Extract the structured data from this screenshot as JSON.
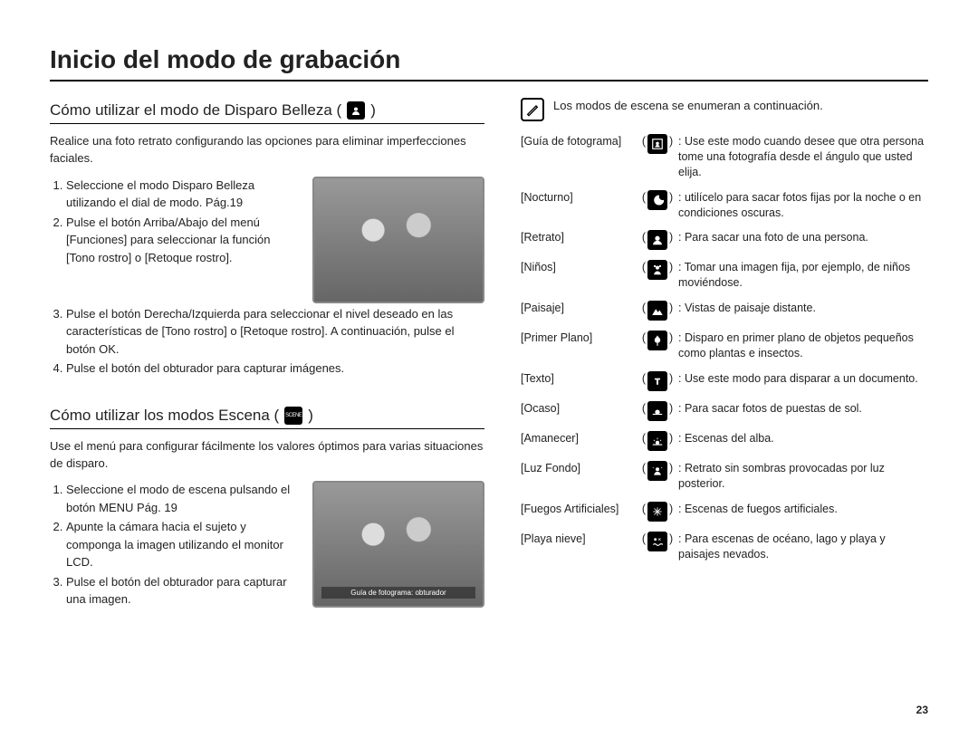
{
  "page": {
    "title": "Inicio del modo de grabación",
    "number": "23"
  },
  "section_beauty": {
    "heading": "Cómo utilizar el modo de Disparo Belleza (",
    "heading_close": ")",
    "icon_name": "beauty-shot-icon",
    "intro": "Realice una foto retrato configurando las opciones para eliminar imperfecciones faciales.",
    "steps": [
      "Seleccione el modo Disparo Belleza utilizando el dial de modo. Pág.19",
      "Pulse el botón Arriba/Abajo del menú [Funciones] para seleccionar la función [Tono rostro] o [Retoque rostro].",
      "Pulse el botón Derecha/Izquierda para seleccionar el nivel deseado en las características de [Tono rostro] o [Retoque rostro]. A continuación, pulse el botón OK.",
      "Pulse el botón del obturador para capturar imágenes."
    ]
  },
  "section_scene": {
    "heading": "Cómo utilizar los modos Escena (",
    "heading_close": ")",
    "icon_label": "SCENE",
    "intro": "Use el menú para configurar fácilmente los valores óptimos para varias situaciones de disparo.",
    "steps": [
      "Seleccione el modo de escena pulsando el botón MENU Pág. 19",
      "Apunte la cámara hacia el sujeto y componga la imagen utilizando el monitor LCD.",
      "Pulse el botón del obturador para capturar una imagen."
    ],
    "lcd_caption": "Guía de fotograma: obturador"
  },
  "scene_note": "Los modos de escena se enumeran a continuación.",
  "modes": [
    {
      "name": "[Guía de fotograma]",
      "icon": "frame-guide",
      "desc": "Use este modo cuando desee que otra persona tome una fotografía desde el ángulo que usted elija."
    },
    {
      "name": "[Nocturno]",
      "icon": "night",
      "desc": "utilícelo para sacar fotos fijas por la noche o en condiciones oscuras."
    },
    {
      "name": "[Retrato]",
      "icon": "portrait",
      "desc": "Para sacar una foto de una persona."
    },
    {
      "name": "[Niños]",
      "icon": "children",
      "desc": "Tomar una imagen fija, por ejemplo, de niños moviéndose."
    },
    {
      "name": "[Paisaje]",
      "icon": "landscape",
      "desc": "Vistas de paisaje distante."
    },
    {
      "name": "[Primer Plano]",
      "icon": "closeup",
      "desc": "Disparo en primer plano de objetos pequeños como plantas e insectos."
    },
    {
      "name": "[Texto]",
      "icon": "text",
      "desc": "Use este modo para disparar a un documento."
    },
    {
      "name": "[Ocaso]",
      "icon": "sunset",
      "desc": "Para sacar fotos de puestas de sol."
    },
    {
      "name": "[Amanecer]",
      "icon": "dawn",
      "desc": "Escenas del alba."
    },
    {
      "name": "[Luz Fondo]",
      "icon": "backlight",
      "desc": "Retrato sin sombras provocadas por luz posterior."
    },
    {
      "name": "[Fuegos Artificiales]",
      "icon": "fireworks",
      "desc": "Escenas de fuegos artificiales."
    },
    {
      "name": "[Playa nieve]",
      "icon": "beach-snow",
      "desc": "Para escenas de océano, lago y playa y paisajes nevados."
    }
  ],
  "colors": {
    "text": "#222222",
    "rule": "#000000",
    "icon_bg": "#000000",
    "icon_fg": "#ffffff",
    "page_bg": "#ffffff"
  },
  "typography": {
    "title_pt": 28,
    "subhead_pt": 17,
    "body_pt": 13,
    "table_pt": 12.5,
    "font_family": "Arial"
  }
}
